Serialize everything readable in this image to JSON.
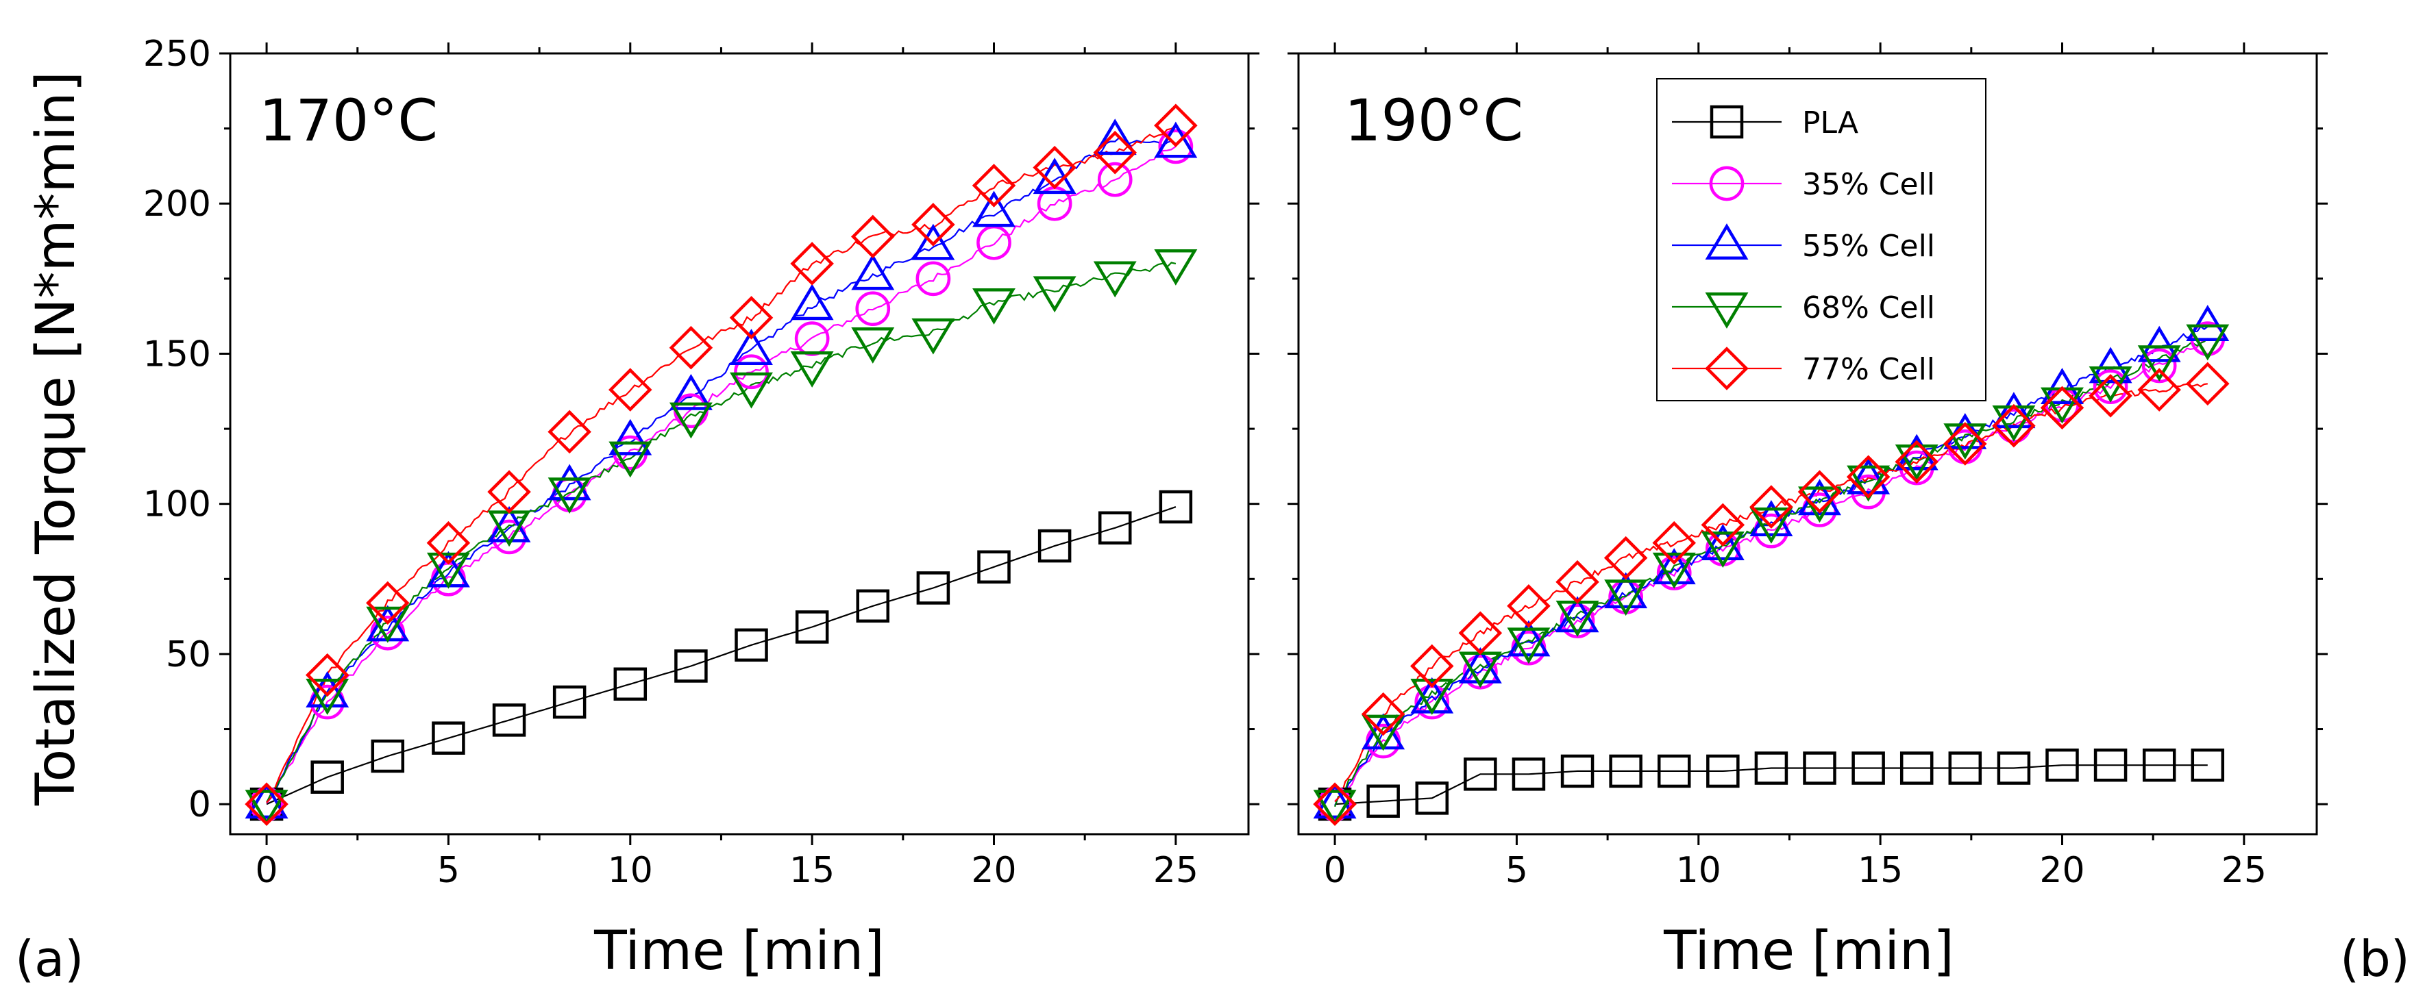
{
  "figure": {
    "ylabel": "Totalized Torque [N*m*min]",
    "xlabel": "Time [min]"
  },
  "legend": {
    "entries": [
      {
        "label": "PLA",
        "color": "#000000",
        "marker": "square"
      },
      {
        "label": "35% Cell",
        "color": "#ff00ff",
        "marker": "circle"
      },
      {
        "label": "55% Cell",
        "color": "#0000ff",
        "marker": "triangle-up"
      },
      {
        "label": "68% Cell",
        "color": "#008000",
        "marker": "triangle-down"
      },
      {
        "label": "77% Cell",
        "color": "#ff0000",
        "marker": "diamond"
      }
    ]
  },
  "chart_data": [
    {
      "type": "line",
      "panel_label": "(a)",
      "title": "170°C",
      "xlabel": "Time [min]",
      "ylabel": "Totalized Torque [N*m*min]",
      "xlim": [
        -1,
        27
      ],
      "ylim": [
        -10,
        250
      ],
      "xticks": [
        0,
        5,
        10,
        15,
        20,
        25
      ],
      "yticks": [
        0,
        50,
        100,
        150,
        200,
        250
      ],
      "series": [
        {
          "name": "PLA",
          "color": "#000000",
          "marker": "square",
          "x": [
            0,
            1.67,
            3.33,
            5,
            6.67,
            8.33,
            10,
            11.67,
            13.33,
            15,
            16.67,
            18.33,
            20,
            21.67,
            23.33,
            25
          ],
          "y": [
            0,
            9,
            16,
            22,
            28,
            34,
            40,
            46,
            53,
            59,
            66,
            72,
            79,
            86,
            92,
            99
          ]
        },
        {
          "name": "35% Cell",
          "color": "#ff00ff",
          "marker": "circle",
          "x": [
            0,
            1.67,
            3.33,
            5,
            6.67,
            8.33,
            10,
            11.67,
            13.33,
            15,
            16.67,
            18.33,
            20,
            21.67,
            23.33,
            25
          ],
          "y": [
            0,
            34,
            57,
            75,
            89,
            103,
            117,
            131,
            144,
            155,
            165,
            175,
            187,
            200,
            208,
            219
          ]
        },
        {
          "name": "55% Cell",
          "color": "#0000ff",
          "marker": "triangle-up",
          "x": [
            0,
            1.67,
            3.33,
            5,
            6.67,
            8.33,
            10,
            11.67,
            13.33,
            15,
            16.67,
            18.33,
            20,
            21.67,
            23.33,
            25
          ],
          "y": [
            0,
            37,
            59,
            77,
            92,
            106,
            121,
            136,
            151,
            166,
            176,
            186,
            197,
            208,
            221,
            220
          ]
        },
        {
          "name": "68% Cell",
          "color": "#008000",
          "marker": "triangle-down",
          "x": [
            0,
            1.67,
            3.33,
            5,
            6.67,
            8.33,
            10,
            11.67,
            13.33,
            15,
            16.67,
            18.33,
            20,
            21.67,
            23.33,
            25
          ],
          "y": [
            0,
            37,
            61,
            79,
            93,
            104,
            116,
            129,
            139,
            146,
            154,
            157,
            167,
            171,
            176,
            180
          ]
        },
        {
          "name": "77% Cell",
          "color": "#ff0000",
          "marker": "diamond",
          "x": [
            0,
            1.67,
            3.33,
            5,
            6.67,
            8.33,
            10,
            11.67,
            13.33,
            15,
            16.67,
            18.33,
            20,
            21.67,
            23.33,
            25
          ],
          "y": [
            0,
            43,
            67,
            87,
            104,
            124,
            138,
            152,
            162,
            180,
            189,
            193,
            206,
            212,
            217,
            226
          ]
        }
      ]
    },
    {
      "type": "line",
      "panel_label": "(b)",
      "title": "190°C",
      "xlabel": "Time [min]",
      "ylabel": "",
      "xlim": [
        -1,
        27
      ],
      "ylim": [
        -10,
        250
      ],
      "xticks": [
        0,
        5,
        10,
        15,
        20,
        25
      ],
      "yticks": [
        0,
        50,
        100,
        150,
        200,
        250
      ],
      "series": [
        {
          "name": "PLA",
          "color": "#000000",
          "marker": "square",
          "x": [
            0,
            1.33,
            2.67,
            4,
            5.33,
            6.67,
            8,
            9.33,
            10.67,
            12,
            13.33,
            14.67,
            16,
            17.33,
            18.67,
            20,
            21.33,
            22.67,
            24
          ],
          "y": [
            0,
            1,
            2,
            10,
            10,
            11,
            11,
            11,
            11,
            12,
            12,
            12,
            12,
            12,
            12,
            13,
            13,
            13,
            13
          ]
        },
        {
          "name": "35% Cell",
          "color": "#ff00ff",
          "marker": "circle",
          "x": [
            0,
            1.33,
            2.67,
            4,
            5.33,
            6.67,
            8,
            9.33,
            10.67,
            12,
            13.33,
            14.67,
            16,
            17.33,
            18.67,
            20,
            21.33,
            22.67,
            24
          ],
          "y": [
            0,
            21,
            34,
            44,
            52,
            61,
            69,
            77,
            85,
            91,
            98,
            104,
            112,
            119,
            126,
            133,
            139,
            146,
            155
          ]
        },
        {
          "name": "55% Cell",
          "color": "#0000ff",
          "marker": "triangle-up",
          "x": [
            0,
            1.33,
            2.67,
            4,
            5.33,
            6.67,
            8,
            9.33,
            10.67,
            12,
            13.33,
            14.67,
            16,
            17.33,
            18.67,
            20,
            21.33,
            22.67,
            24
          ],
          "y": [
            0,
            23,
            35,
            45,
            54,
            62,
            70,
            78,
            86,
            94,
            101,
            108,
            116,
            123,
            130,
            138,
            145,
            152,
            159
          ]
        },
        {
          "name": "68% Cell",
          "color": "#008000",
          "marker": "triangle-down",
          "x": [
            0,
            1.33,
            2.67,
            4,
            5.33,
            6.67,
            8,
            9.33,
            10.67,
            12,
            13.33,
            14.67,
            16,
            17.33,
            18.67,
            20,
            21.33,
            22.67,
            24
          ],
          "y": [
            0,
            25,
            37,
            46,
            54,
            63,
            70,
            79,
            86,
            94,
            101,
            108,
            115,
            122,
            128,
            134,
            141,
            148,
            155
          ]
        },
        {
          "name": "77% Cell",
          "color": "#ff0000",
          "marker": "diamond",
          "x": [
            0,
            1.33,
            2.67,
            4,
            5.33,
            6.67,
            8,
            9.33,
            10.67,
            12,
            13.33,
            14.67,
            16,
            17.33,
            18.67,
            20,
            21.33,
            22.67,
            24
          ],
          "y": [
            0,
            30,
            46,
            57,
            66,
            74,
            82,
            87,
            93,
            99,
            104,
            109,
            114,
            120,
            126,
            132,
            136,
            138,
            140
          ]
        }
      ]
    }
  ]
}
